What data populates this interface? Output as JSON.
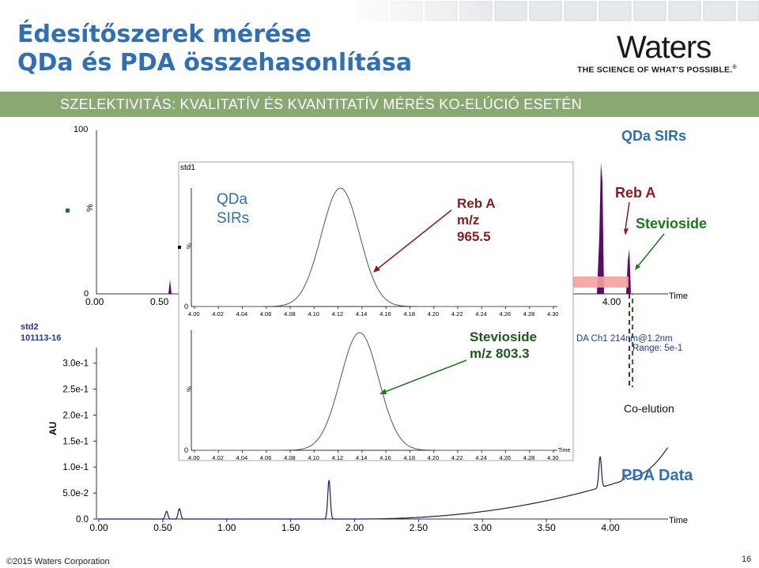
{
  "title": {
    "line1": "Édesítőszerek mérése",
    "line2": "QDa és PDA összehasonlítása"
  },
  "logo": {
    "word": "Waters",
    "tagline": "THE SCIENCE OF WHAT'S POSSIBLE.",
    "reg": "®"
  },
  "banner": {
    "text": "SZELEKTIVITÁS:  KVALITATÍV ÉS KVANTITATÍV MÉRÉS KO-ELÚCIÓ ESETÉN"
  },
  "labels": {
    "qda_sirs_top": "QDa SIRs",
    "inset_qda": "QDa",
    "inset_sirs": "SIRs",
    "reb_a_l1": "Reb A",
    "reb_a_l2": "m/z",
    "reb_a_l3": "965.5",
    "reb_a_right": "Reb A",
    "stevioside_right": "Stevioside",
    "stev_l1": "Stevioside",
    "stev_l2": "m/z 803.3",
    "coelution": "Co-elution",
    "pda_data": "PDA Data",
    "std1": "std1",
    "std2": "std2",
    "std2_id": "101113-16",
    "pda_ch_l1": "DA Ch1 214nm@1.2nm",
    "pda_ch_l2": "Range: 5e-1",
    "time": "Time",
    "pct": "%",
    "au": "AU"
  },
  "footer": {
    "copyright": "©2015 Waters Corporation",
    "page": "16"
  },
  "colors": {
    "title": "#2f6fb5",
    "banner": "#8aa872",
    "reb_a": "#8b1a1a",
    "stevioside": "#1a7a1a",
    "peak_purple": "#5a0a6a",
    "arrow_pink": "#f4a0a0"
  },
  "chart_data": [
    {
      "type": "line",
      "name_ref": "top-ms-chromatogram",
      "x_ticks": [
        "0.00",
        "0.50",
        "4.00"
      ],
      "y_ticks": [
        "0",
        "100"
      ],
      "xlabel": "Time",
      "ylabel": "%",
      "peaks": [
        {
          "x": 0.55,
          "y": 10
        },
        {
          "x": 3.92,
          "y": 80
        },
        {
          "x": 4.09,
          "y": 32
        }
      ]
    },
    {
      "type": "line",
      "name_ref": "inset-reb-a",
      "x_ticks": [
        "4.00",
        "4.02",
        "4.04",
        "4.06",
        "4.08",
        "4.10",
        "4.12",
        "4.14",
        "4.16",
        "4.18",
        "4.20",
        "4.22",
        "4.24",
        "4.26",
        "4.28",
        "4.30"
      ],
      "y_ticks": [
        "0",
        "%"
      ],
      "xlim": [
        4.0,
        4.3
      ],
      "peak": {
        "center": 4.122,
        "sigma": 0.016,
        "height": 100
      }
    },
    {
      "type": "line",
      "name_ref": "inset-stevioside",
      "x_ticks": [
        "4.00",
        "4.02",
        "4.04",
        "4.06",
        "4.08",
        "4.10",
        "4.12",
        "4.14",
        "4.16",
        "4.18",
        "4.20",
        "4.22",
        "4.24",
        "4.26",
        "4.28",
        "4.30"
      ],
      "y_ticks": [
        "0",
        "%"
      ],
      "xlim": [
        4.0,
        4.3
      ],
      "xlabel": "Time",
      "peak": {
        "center": 4.138,
        "sigma": 0.016,
        "height": 100
      }
    },
    {
      "type": "line",
      "name_ref": "pda-chromatogram",
      "x_ticks": [
        "0.00",
        "0.50",
        "1.00",
        "1.50",
        "2.00",
        "2.50",
        "3.00",
        "3.50",
        "4.00"
      ],
      "y_ticks": [
        "0.0",
        "5.0e-2",
        "1.0e-1",
        "1.5e-1",
        "2.0e-1",
        "2.5e-1",
        "3.0e-1"
      ],
      "xlabel": "Time",
      "ylabel": "AU",
      "xlim": [
        0,
        4.5
      ],
      "ylim": [
        0,
        0.33
      ],
      "peaks": [
        {
          "x": 0.53,
          "y": 0.015
        },
        {
          "x": 0.63,
          "y": 0.02
        },
        {
          "x": 1.8,
          "y": 0.075
        },
        {
          "x": 3.92,
          "y": 0.06
        },
        {
          "x": 4.11,
          "y": 0.01
        }
      ]
    }
  ]
}
